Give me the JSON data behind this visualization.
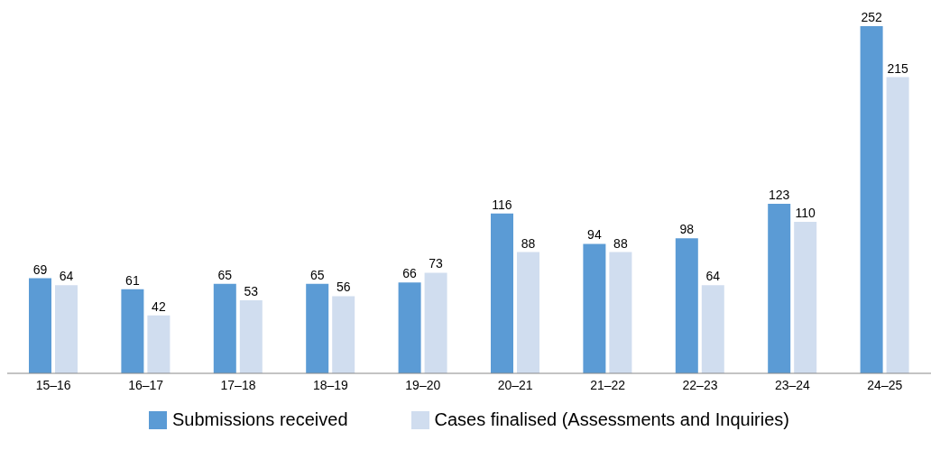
{
  "chart_data": {
    "type": "bar",
    "categories": [
      "15–16",
      "16–17",
      "17–18",
      "18–19",
      "19–20",
      "20–21",
      "21–22",
      "22–23",
      "23–24",
      "24–25"
    ],
    "series": [
      {
        "name": "Submissions received",
        "color": "#5b9bd5",
        "values": [
          69,
          61,
          65,
          65,
          66,
          116,
          94,
          98,
          123,
          252
        ]
      },
      {
        "name": "Cases finalised (Assessments and Inquiries)",
        "color": "#d0ddef",
        "values": [
          64,
          42,
          53,
          56,
          73,
          88,
          88,
          64,
          110,
          215
        ]
      }
    ],
    "data_labels": true,
    "legend": "bottom",
    "grid": false
  }
}
